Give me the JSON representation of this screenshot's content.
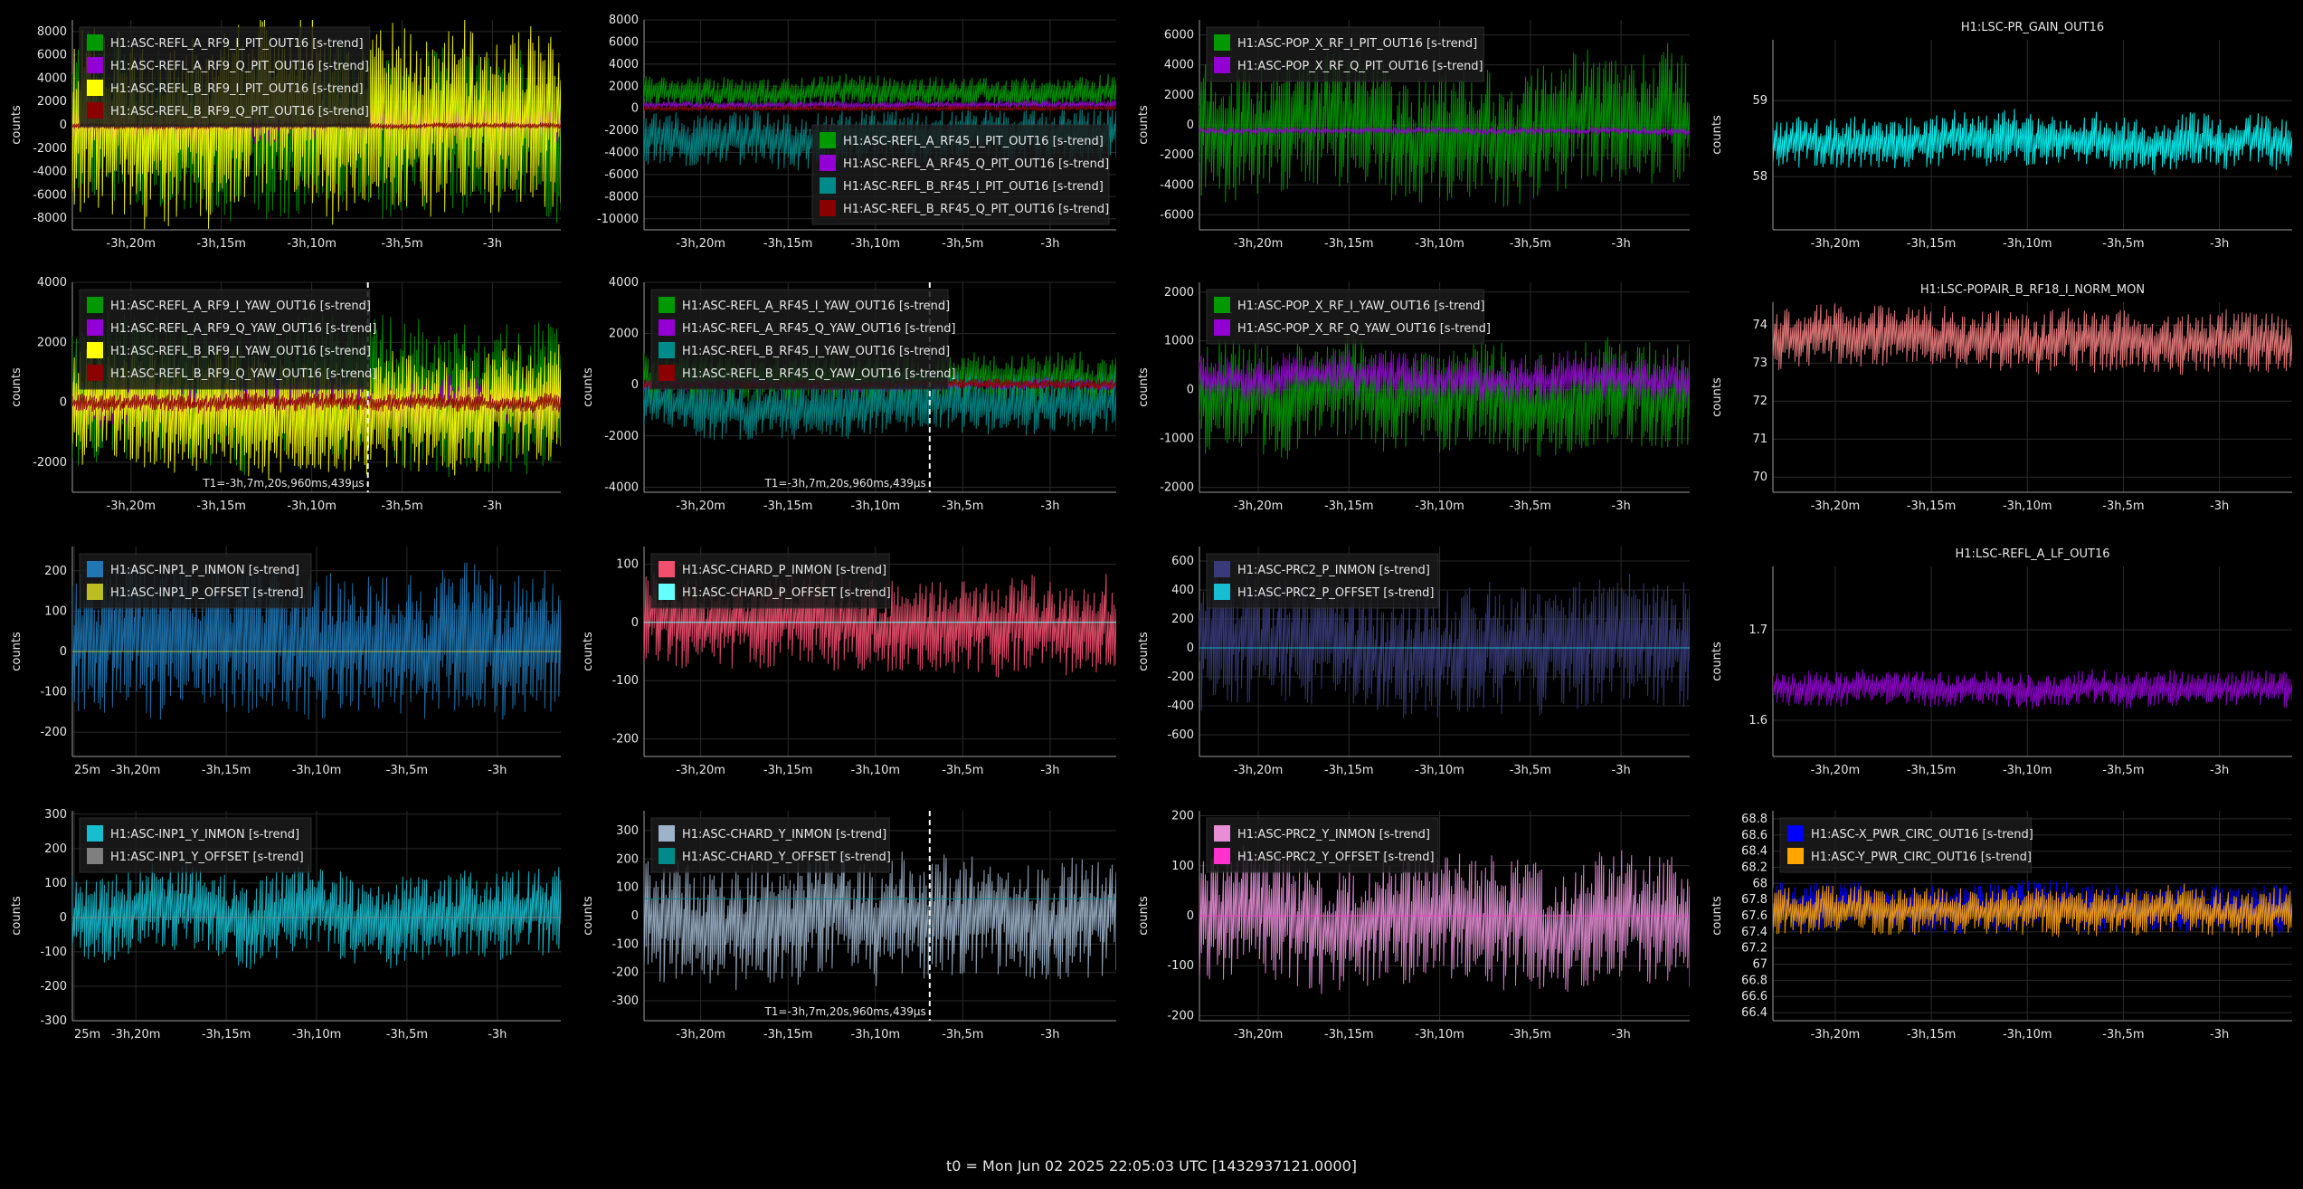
{
  "footer": "t0 = Mon Jun 02 2025 22:05:03 UTC [1432937121.0000]",
  "theme": {
    "background": "#000000",
    "axis_color": "#9a9a9a",
    "grid_color": "#2a2a2a",
    "text_color": "#e6e6e6",
    "legend_bg": "#1c1c1c",
    "cursor_color": "#ffffff"
  },
  "chart_data": [
    {
      "id": "p1",
      "type": "line",
      "title": "",
      "xlabel": "",
      "ylabel": "counts",
      "ylim": [
        -9000,
        9000
      ],
      "yticks": [
        -8000,
        -6000,
        -4000,
        -2000,
        0,
        2000,
        4000,
        6000,
        8000
      ],
      "xticks": [
        "-3h,20m",
        "-3h,15m",
        "-3h,10m",
        "-3h,5m",
        "-3h"
      ],
      "legend": "top-left",
      "series": [
        {
          "name": "H1:ASC-REFL_A_RF9_I_PIT_OUT16 [s-trend]",
          "color": "#009900",
          "mean": 0,
          "spread": 7000
        },
        {
          "name": "H1:ASC-REFL_A_RF9_Q_PIT_OUT16 [s-trend]",
          "color": "#9400d3",
          "mean": 0,
          "spread": 1500
        },
        {
          "name": "H1:ASC-REFL_B_RF9_I_PIT_OUT16 [s-trend]",
          "color": "#ffff00",
          "mean": 0,
          "spread": 8000
        },
        {
          "name": "H1:ASC-REFL_B_RF9_Q_PIT_OUT16 [s-trend]",
          "color": "#8b0000",
          "mean": -50,
          "spread": 250
        }
      ]
    },
    {
      "id": "p2",
      "type": "line",
      "title": "",
      "xlabel": "",
      "ylabel": "",
      "ylim": [
        -11000,
        8000
      ],
      "yticks": [
        -10000,
        -8000,
        -6000,
        -4000,
        -2000,
        0,
        2000,
        4000,
        6000,
        8000
      ],
      "xticks": [
        "-3h,20m",
        "-3h,15m",
        "-3h,10m",
        "-3h,5m",
        "-3h"
      ],
      "legend": "bottom-right",
      "series": [
        {
          "name": "H1:ASC-REFL_A_RF45_I_PIT_OUT16 [s-trend]",
          "color": "#009900",
          "mean": 1500,
          "spread": 1500
        },
        {
          "name": "H1:ASC-REFL_A_RF45_Q_PIT_OUT16 [s-trend]",
          "color": "#9400d3",
          "mean": 300,
          "spread": 400
        },
        {
          "name": "H1:ASC-REFL_B_RF45_I_PIT_OUT16 [s-trend]",
          "color": "#008b8b",
          "mean": -2500,
          "spread": 2500
        },
        {
          "name": "H1:ASC-REFL_B_RF45_Q_PIT_OUT16 [s-trend]",
          "color": "#8b0000",
          "mean": 0,
          "spread": 200
        }
      ]
    },
    {
      "id": "p3",
      "type": "line",
      "title": "",
      "xlabel": "",
      "ylabel": "counts",
      "ylim": [
        -7000,
        7000
      ],
      "yticks": [
        -6000,
        -4000,
        -2000,
        0,
        2000,
        4000,
        6000
      ],
      "xticks": [
        "-3h,20m",
        "-3h,15m",
        "-3h,10m",
        "-3h,5m",
        "-3h"
      ],
      "legend": "top-left",
      "series": [
        {
          "name": "H1:ASC-POP_X_RF_I_PIT_OUT16 [s-trend]",
          "color": "#009900",
          "mean": 0,
          "spread": 4500
        },
        {
          "name": "H1:ASC-POP_X_RF_Q_PIT_OUT16 [s-trend]",
          "color": "#9400d3",
          "mean": -400,
          "spread": 300
        }
      ]
    },
    {
      "id": "p4",
      "type": "line",
      "title": "H1:LSC-PR_GAIN_OUT16",
      "xlabel": "",
      "ylabel": "counts",
      "ylim": [
        57.3,
        59.8
      ],
      "yticks": [
        58,
        59
      ],
      "xticks": [
        "-3h,20m",
        "-3h,15m",
        "-3h,10m",
        "-3h,5m",
        "-3h"
      ],
      "legend": "none",
      "series": [
        {
          "name": "",
          "color": "#00ffff",
          "mean": 58.45,
          "spread": 0.35
        }
      ]
    },
    {
      "id": "p5",
      "type": "line",
      "title": "",
      "xlabel": "",
      "ylabel": "counts",
      "ylim": [
        -3000,
        4000
      ],
      "yticks": [
        -2000,
        0,
        2000,
        4000
      ],
      "xticks": [
        "-3h,20m",
        "-3h,15m",
        "-3h,10m",
        "-3h,5m",
        "-3h"
      ],
      "legend": "top-left",
      "cursor_label": "T1=-3h,7m,20s,960ms,439μs",
      "cursor_frac": 0.605,
      "series": [
        {
          "name": "H1:ASC-REFL_A_RF9_I_YAW_OUT16 [s-trend]",
          "color": "#009900",
          "mean": 300,
          "spread": 2500
        },
        {
          "name": "H1:ASC-REFL_A_RF9_Q_YAW_OUT16 [s-trend]",
          "color": "#9400d3",
          "mean": 0,
          "spread": 800
        },
        {
          "name": "H1:ASC-REFL_B_RF9_I_YAW_OUT16 [s-trend]",
          "color": "#ffff00",
          "mean": -300,
          "spread": 2000
        },
        {
          "name": "H1:ASC-REFL_B_RF9_Q_YAW_OUT16 [s-trend]",
          "color": "#8b0000",
          "mean": 0,
          "spread": 300
        }
      ]
    },
    {
      "id": "p6",
      "type": "line",
      "title": "",
      "xlabel": "",
      "ylabel": "counts",
      "ylim": [
        -4200,
        4000
      ],
      "yticks": [
        -4000,
        -2000,
        0,
        2000,
        4000
      ],
      "xticks": [
        "-3h,20m",
        "-3h,15m",
        "-3h,10m",
        "-3h,5m",
        "-3h"
      ],
      "legend": "top-left",
      "cursor_label": "T1=-3h,7m,20s,960ms,439μs",
      "cursor_frac": 0.605,
      "series": [
        {
          "name": "H1:ASC-REFL_A_RF45_I_YAW_OUT16 [s-trend]",
          "color": "#009900",
          "mean": 200,
          "spread": 1000
        },
        {
          "name": "H1:ASC-REFL_A_RF45_Q_YAW_OUT16 [s-trend]",
          "color": "#9400d3",
          "mean": 0,
          "spread": 250
        },
        {
          "name": "H1:ASC-REFL_B_RF45_I_YAW_OUT16 [s-trend]",
          "color": "#008b8b",
          "mean": -700,
          "spread": 1200
        },
        {
          "name": "H1:ASC-REFL_B_RF45_Q_YAW_OUT16 [s-trend]",
          "color": "#8b0000",
          "mean": 0,
          "spread": 200
        }
      ]
    },
    {
      "id": "p7",
      "type": "line",
      "title": "",
      "xlabel": "",
      "ylabel": "counts",
      "ylim": [
        -2100,
        2200
      ],
      "yticks": [
        -2000,
        -1000,
        0,
        1000,
        2000
      ],
      "xticks": [
        "-3h,20m",
        "-3h,15m",
        "-3h,10m",
        "-3h,5m",
        "-3h"
      ],
      "legend": "top-left",
      "series": [
        {
          "name": "H1:ASC-POP_X_RF_I_YAW_OUT16 [s-trend]",
          "color": "#009900",
          "mean": -200,
          "spread": 1100
        },
        {
          "name": "H1:ASC-POP_X_RF_Q_YAW_OUT16 [s-trend]",
          "color": "#9400d3",
          "mean": 250,
          "spread": 500
        }
      ]
    },
    {
      "id": "p8",
      "type": "line",
      "title": "H1:LSC-POPAIR_B_RF18_I_NORM_MON",
      "xlabel": "",
      "ylabel": "counts",
      "ylim": [
        69.6,
        74.6
      ],
      "yticks": [
        70,
        71,
        72,
        73,
        74
      ],
      "xticks": [
        "-3h,20m",
        "-3h,15m",
        "-3h,10m",
        "-3h,5m",
        "-3h"
      ],
      "legend": "none",
      "series": [
        {
          "name": "",
          "color": "#f08080",
          "mean": 73.6,
          "spread": 0.8
        }
      ]
    },
    {
      "id": "p9",
      "type": "line",
      "title": "",
      "xlabel": "",
      "ylabel": "counts",
      "ylim": [
        -260,
        260
      ],
      "yticks": [
        -200,
        -100,
        0,
        100,
        200
      ],
      "xticks": [
        "25m",
        "-3h,20m",
        "-3h,15m",
        "-3h,10m",
        "-3h,5m",
        "-3h"
      ],
      "legend": "top-left",
      "series": [
        {
          "name": "H1:ASC-INP1_P_INMON [s-trend]",
          "color": "#1f77b4",
          "mean": 0,
          "spread": 180
        },
        {
          "name": "H1:ASC-INP1_P_OFFSET [s-trend]",
          "color": "#bcbd22",
          "mean": 0,
          "spread": 0
        }
      ]
    },
    {
      "id": "p10",
      "type": "line",
      "title": "",
      "xlabel": "",
      "ylabel": "counts",
      "ylim": [
        -230,
        130
      ],
      "yticks": [
        -200,
        -100,
        0,
        100
      ],
      "xticks": [
        "-3h,20m",
        "-3h,15m",
        "-3h,10m",
        "-3h,5m",
        "-3h"
      ],
      "legend": "top-left",
      "series": [
        {
          "name": "H1:ASC-CHARD_P_INMON [s-trend]",
          "color": "#f0506e",
          "mean": 0,
          "spread": 80
        },
        {
          "name": "H1:ASC-CHARD_P_OFFSET [s-trend]",
          "color": "#66ffff",
          "mean": 0,
          "spread": 0
        }
      ]
    },
    {
      "id": "p11",
      "type": "line",
      "title": "",
      "xlabel": "",
      "ylabel": "counts",
      "ylim": [
        -750,
        700
      ],
      "yticks": [
        -600,
        -400,
        -200,
        0,
        200,
        400,
        600
      ],
      "xticks": [
        "-3h,20m",
        "-3h,15m",
        "-3h,10m",
        "-3h,5m",
        "-3h"
      ],
      "legend": "top-left",
      "series": [
        {
          "name": "H1:ASC-PRC2_P_INMON [s-trend]",
          "color": "#393b79",
          "mean": 0,
          "spread": 450
        },
        {
          "name": "H1:ASC-PRC2_P_OFFSET [s-trend]",
          "color": "#17becf",
          "mean": 0,
          "spread": 0
        }
      ]
    },
    {
      "id": "p12",
      "type": "line",
      "title": "H1:LSC-REFL_A_LF_OUT16",
      "xlabel": "",
      "ylabel": "counts",
      "ylim": [
        1.56,
        1.77
      ],
      "yticks": [
        1.6,
        1.7
      ],
      "xticks": [
        "-3h,20m",
        "-3h,15m",
        "-3h,10m",
        "-3h,5m",
        "-3h"
      ],
      "legend": "none",
      "series": [
        {
          "name": "",
          "color": "#9400d3",
          "mean": 1.635,
          "spread": 0.02
        }
      ]
    },
    {
      "id": "p13",
      "type": "line",
      "title": "",
      "xlabel": "",
      "ylabel": "counts",
      "ylim": [
        -300,
        310
      ],
      "yticks": [
        -300,
        -200,
        -100,
        0,
        100,
        200,
        300
      ],
      "xticks": [
        "25m",
        "-3h,20m",
        "-3h,15m",
        "-3h,10m",
        "-3h,5m",
        "-3h"
      ],
      "legend": "top-left",
      "series": [
        {
          "name": "H1:ASC-INP1_Y_INMON [s-trend]",
          "color": "#17becf",
          "mean": 0,
          "spread": 130
        },
        {
          "name": "H1:ASC-INP1_Y_OFFSET [s-trend]",
          "color": "#7f7f7f",
          "mean": 0,
          "spread": 0
        }
      ]
    },
    {
      "id": "p14",
      "type": "line",
      "title": "",
      "xlabel": "",
      "ylabel": "counts",
      "ylim": [
        -370,
        370
      ],
      "yticks": [
        -300,
        -200,
        -100,
        0,
        100,
        200,
        300
      ],
      "xticks": [
        "-3h,20m",
        "-3h,15m",
        "-3h,10m",
        "-3h,5m",
        "-3h"
      ],
      "legend": "top-left",
      "cursor_label": "T1=-3h,7m,20s,960ms,439μs",
      "cursor_frac": 0.605,
      "series": [
        {
          "name": "H1:ASC-CHARD_Y_INMON [s-trend]",
          "color": "#9cb3c9",
          "mean": 0,
          "spread": 220
        },
        {
          "name": "H1:ASC-CHARD_Y_OFFSET [s-trend]",
          "color": "#008b8b",
          "mean": 60,
          "spread": 0
        }
      ]
    },
    {
      "id": "p15",
      "type": "line",
      "title": "",
      "xlabel": "",
      "ylabel": "counts",
      "ylim": [
        -210,
        210
      ],
      "yticks": [
        -200,
        -100,
        0,
        100,
        200
      ],
      "xticks": [
        "-3h,20m",
        "-3h,15m",
        "-3h,10m",
        "-3h,5m",
        "-3h"
      ],
      "legend": "top-left",
      "series": [
        {
          "name": "H1:ASC-PRC2_Y_INMON [s-trend]",
          "color": "#e68fd6",
          "mean": 0,
          "spread": 130
        },
        {
          "name": "H1:ASC-PRC2_Y_OFFSET [s-trend]",
          "color": "#ff33cc",
          "mean": 0,
          "spread": 0
        }
      ]
    },
    {
      "id": "p16",
      "type": "line",
      "title": "",
      "xlabel": "",
      "ylabel": "counts",
      "ylim": [
        66.3,
        68.9
      ],
      "yticks": [
        66.4,
        66.6,
        66.8,
        67,
        67.2,
        67.4,
        67.6,
        67.8,
        68,
        68.2,
        68.4,
        68.6,
        68.8
      ],
      "xticks": [
        "-3h,20m",
        "-3h,15m",
        "-3h,10m",
        "-3h,5m",
        "-3h"
      ],
      "legend": "top-left",
      "series": [
        {
          "name": "H1:ASC-X_PWR_CIRC_OUT16 [s-trend]",
          "color": "#0000ff",
          "mean": 67.7,
          "spread": 0.3
        },
        {
          "name": "H1:ASC-Y_PWR_CIRC_OUT16 [s-trend]",
          "color": "#ffa500",
          "mean": 67.65,
          "spread": 0.3
        }
      ]
    }
  ]
}
